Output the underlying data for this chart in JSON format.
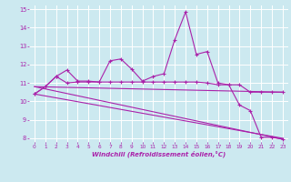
{
  "xlabel": "Windchill (Refroidissement éolien,°C)",
  "background_color": "#cce9f0",
  "grid_color": "#ffffff",
  "line_color": "#aa22aa",
  "xlim": [
    -0.5,
    23.5
  ],
  "ylim": [
    7.8,
    15.2
  ],
  "yticks": [
    8,
    9,
    10,
    11,
    12,
    13,
    14,
    15
  ],
  "xticks": [
    0,
    1,
    2,
    3,
    4,
    5,
    6,
    7,
    8,
    9,
    10,
    11,
    12,
    13,
    14,
    15,
    16,
    17,
    18,
    19,
    20,
    21,
    22,
    23
  ],
  "series1_x": [
    0,
    1,
    2,
    3,
    4,
    5,
    6,
    7,
    8,
    9,
    10,
    11,
    12,
    13,
    14,
    15,
    16,
    17,
    18,
    19,
    20,
    21,
    22,
    23
  ],
  "series1_y": [
    10.4,
    10.8,
    11.35,
    11.7,
    11.1,
    11.1,
    11.05,
    12.2,
    12.3,
    11.75,
    11.1,
    11.35,
    11.5,
    13.35,
    14.85,
    12.55,
    12.7,
    11.0,
    10.9,
    9.8,
    9.5,
    8.05,
    8.05,
    7.95
  ],
  "series2_x": [
    0,
    1,
    2,
    3,
    4,
    5,
    6,
    7,
    8,
    9,
    10,
    11,
    12,
    13,
    14,
    15,
    16,
    17,
    18,
    19,
    20,
    21,
    22,
    23
  ],
  "series2_y": [
    10.4,
    10.8,
    11.35,
    11.0,
    11.05,
    11.05,
    11.05,
    11.05,
    11.05,
    11.05,
    11.05,
    11.05,
    11.05,
    11.05,
    11.05,
    11.05,
    11.0,
    10.9,
    10.9,
    10.9,
    10.5,
    10.5,
    10.5,
    10.5
  ],
  "series3_x": [
    0,
    23
  ],
  "series3_y": [
    10.8,
    10.5
  ],
  "series4_x": [
    0,
    23
  ],
  "series4_y": [
    10.4,
    8.0
  ],
  "series5_x": [
    0,
    23
  ],
  "series5_y": [
    10.8,
    7.95
  ]
}
